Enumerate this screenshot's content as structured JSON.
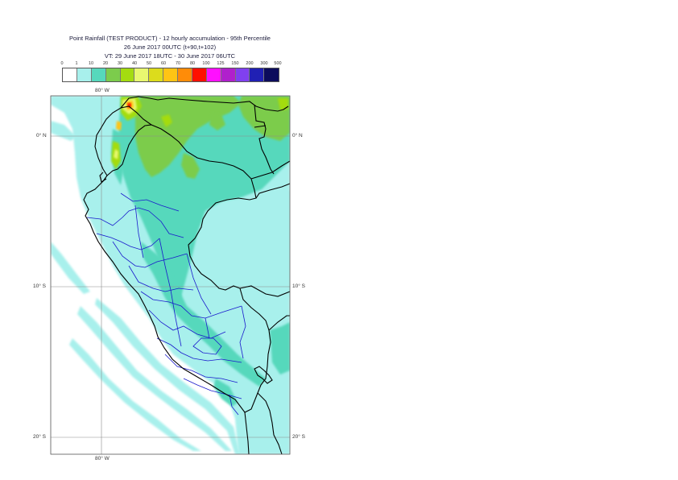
{
  "header": {
    "title_line1": "Point Rainfall (TEST PRODUCT) - 12 hourly accumulation - 95th Percentile",
    "title_line2": "26 June 2017 00UTC (t+90,t+102)",
    "title_line3": "VT: 29 June 2017 18UTC - 30 June 2017 06UTC"
  },
  "legend": {
    "ticks": [
      "0",
      "1",
      "10",
      "20",
      "30",
      "40",
      "50",
      "60",
      "70",
      "80",
      "100",
      "125",
      "150",
      "200",
      "300",
      "500"
    ],
    "colors": [
      "#ffffff",
      "#a8f0ec",
      "#56d8bc",
      "#7ccc4c",
      "#a4dc10",
      "#e8f870",
      "#dcdc1c",
      "#ffc414",
      "#ff8c08",
      "#ff1000",
      "#ff10ff",
      "#b020cc",
      "#8040f0",
      "#2020b4",
      "#0c0c5c"
    ]
  },
  "axes": {
    "lon_top": "80° W",
    "lon_bottom": "80° W",
    "lat_left": [
      "0° N",
      "10° S",
      "20° S"
    ],
    "lat_right": [
      "0° N",
      "10° S",
      "20° S"
    ]
  },
  "colors": {
    "ocean": "#ffffff",
    "light_rain": "#aaf1ee",
    "moderate_rain": "#5cd8b6",
    "heavy_rain": "#86ce48",
    "country_border": "#000000",
    "region_border": "#1a1acc",
    "grid": "#8c8c8c"
  }
}
